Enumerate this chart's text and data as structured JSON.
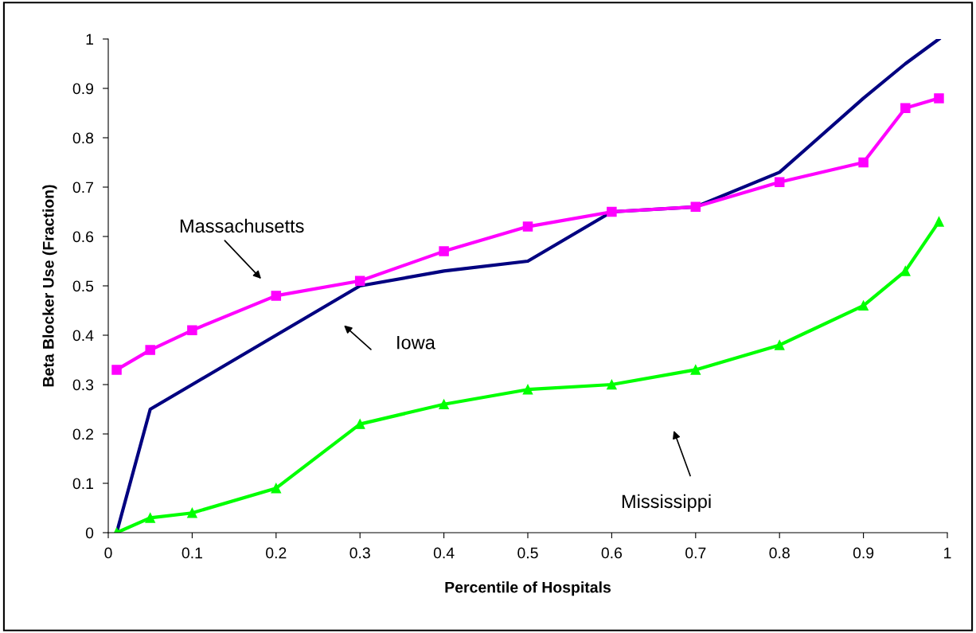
{
  "chart_data": {
    "type": "line",
    "xlabel": "Percentile of Hospitals",
    "ylabel": "Beta Blocker Use (Fraction)",
    "x": [
      0.01,
      0.05,
      0.1,
      0.2,
      0.3,
      0.4,
      0.5,
      0.6,
      0.7,
      0.8,
      0.9,
      0.95,
      0.99
    ],
    "series": [
      {
        "color": "#000080",
        "marker": "none",
        "values": [
          0,
          0.25,
          0.3,
          0.4,
          0.5,
          0.53,
          0.55,
          0.65,
          0.66,
          0.73,
          0.88,
          0.95,
          1.0
        ]
      },
      {
        "color": "#ff00ff",
        "marker": "square",
        "values": [
          0.33,
          0.37,
          0.41,
          0.48,
          0.51,
          0.57,
          0.62,
          0.65,
          0.66,
          0.71,
          0.75,
          0.86,
          0.88
        ]
      },
      {
        "color": "#00ff00",
        "marker": "triangle",
        "values": [
          0,
          0.03,
          0.04,
          0.09,
          0.22,
          0.26,
          0.29,
          0.3,
          0.33,
          0.38,
          0.46,
          0.53,
          0.63
        ]
      }
    ],
    "annotations": [
      "Massachusetts",
      "Iowa",
      "Mississippi"
    ],
    "xlim": [
      0,
      1
    ],
    "ylim": [
      0,
      1
    ],
    "xticks": [
      0,
      0.1,
      0.2,
      0.3,
      0.4,
      0.5,
      0.6,
      0.7,
      0.8,
      0.9,
      1
    ],
    "yticks": [
      0,
      0.1,
      0.2,
      0.3,
      0.4,
      0.5,
      0.6,
      0.7,
      0.8,
      0.9,
      1
    ],
    "grid": false
  }
}
